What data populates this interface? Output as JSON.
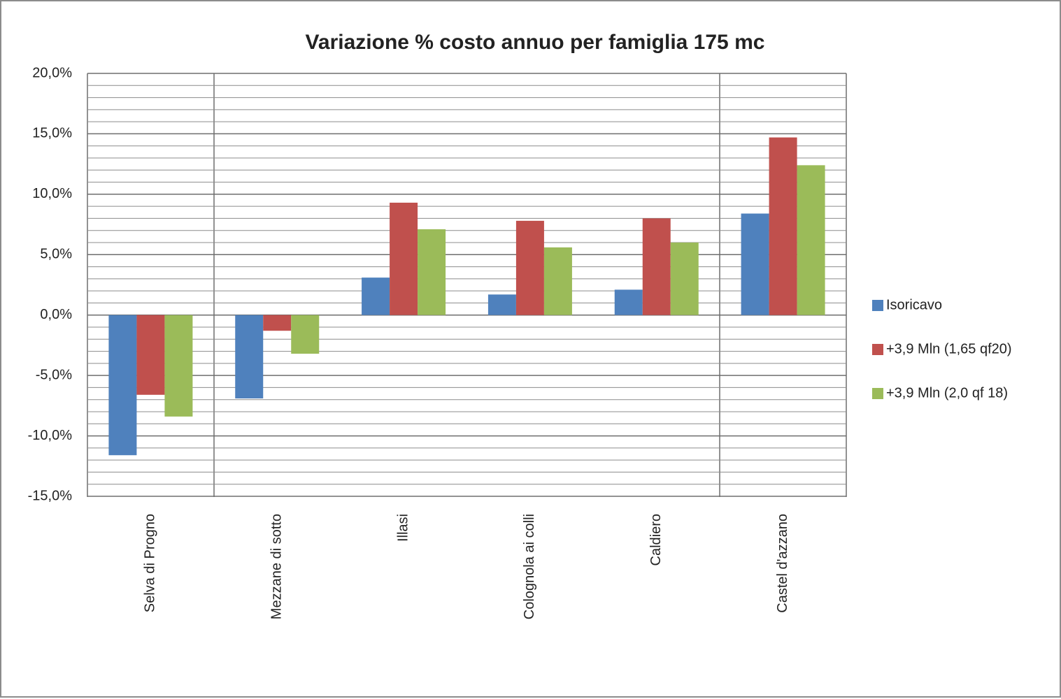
{
  "chart_data": {
    "type": "bar",
    "title": "Variazione % costo annuo per famiglia 175 mc",
    "categories": [
      "Selva di Progno",
      "Mezzane di sotto",
      "Illasi",
      "Colognola ai colli",
      "Caldiero",
      "Castel d'azzano"
    ],
    "series": [
      {
        "name": "Isoricavo",
        "color": "#4f81bd",
        "values": [
          -11.6,
          -6.9,
          3.1,
          1.7,
          2.1,
          8.4
        ]
      },
      {
        "name": "+3,9 Mln (1,65 qf20)",
        "color": "#c0504d",
        "values": [
          -6.6,
          -1.3,
          9.3,
          7.8,
          8.0,
          14.7
        ]
      },
      {
        "name": "+3,9 Mln (2,0 qf 18)",
        "color": "#9bbb59",
        "values": [
          -8.4,
          -3.2,
          7.1,
          5.6,
          6.0,
          12.4
        ]
      }
    ],
    "ylim": [
      -15,
      20
    ],
    "yticks": [
      {
        "value": -15,
        "label": "-15,0%"
      },
      {
        "value": -10,
        "label": "-10,0%"
      },
      {
        "value": -5,
        "label": "-5,0%"
      },
      {
        "value": 0,
        "label": "0,0%"
      },
      {
        "value": 5,
        "label": "5,0%"
      },
      {
        "value": 10,
        "label": "10,0%"
      },
      {
        "value": 15,
        "label": "15,0%"
      },
      {
        "value": 20,
        "label": "20,0%"
      }
    ],
    "yminorticks": [
      -14,
      -13,
      -12,
      -11,
      -9,
      -8,
      -7,
      -6,
      -4,
      -3,
      -2,
      -1,
      1,
      2,
      3,
      4,
      6,
      7,
      8,
      9,
      11,
      12,
      13,
      14,
      16,
      17,
      18,
      19
    ],
    "grid": true,
    "legend": "right"
  }
}
